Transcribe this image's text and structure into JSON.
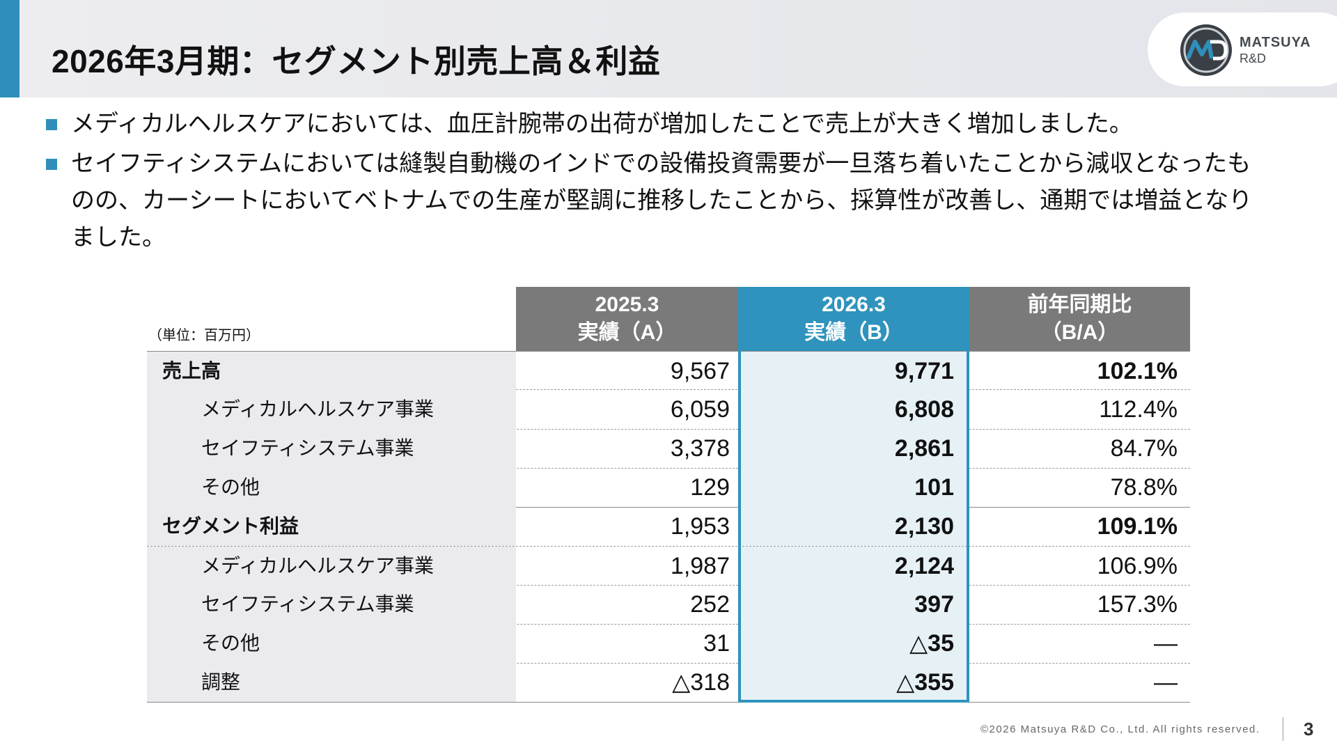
{
  "header": {
    "title": "2026年3月期：セグメント別売上高＆利益",
    "logo_name": "MATSUYA",
    "logo_sub": "R&D",
    "logo_icon": "mrd-circle-logo-icon",
    "accent_color": "#2f8fba"
  },
  "bullets": [
    "メディカルヘルスケアにおいては、血圧計腕帯の出荷が増加したことで売上が大きく増加しました。",
    "セイフティシステムにおいては縫製自動機のインドでの設備投資需要が一旦落ち着いたことから減収となったものの、カーシートにおいてベトナムでの生産が堅調に推移したことから、採算性が改善し、通期では増益となりました。"
  ],
  "table": {
    "unit": "（単位：百万円）",
    "headers": {
      "a": [
        "2025.3",
        "実績（A）"
      ],
      "b": [
        "2026.3",
        "実績（B）"
      ],
      "c": [
        "前年同期比",
        "（B/A）"
      ]
    },
    "rows": [
      {
        "label": "売上高",
        "a": "9,567",
        "b": "9,771",
        "c": "102.1%"
      },
      {
        "label": "メディカルヘルスケア事業",
        "a": "6,059",
        "b": "6,808",
        "c": "112.4%"
      },
      {
        "label": "セイフティシステム事業",
        "a": "3,378",
        "b": "2,861",
        "c": "84.7%"
      },
      {
        "label": "その他",
        "a": "129",
        "b": "101",
        "c": "78.8%"
      },
      {
        "label": "セグメント利益",
        "a": "1,953",
        "b": "2,130",
        "c": "109.1%"
      },
      {
        "label": "メディカルヘルスケア事業",
        "a": "1,987",
        "b": "2,124",
        "c": "106.9%"
      },
      {
        "label": "セイフティシステム事業",
        "a": "252",
        "b": "397",
        "c": "157.3%"
      },
      {
        "label": "その他",
        "a": "31",
        "b": "△35",
        "c": "―"
      },
      {
        "label": "調整",
        "a": "△318",
        "b": "△355",
        "c": "―"
      }
    ],
    "highlight_color": "#2f93bd"
  },
  "footer": {
    "copyright": "©2026 Matsuya R&D Co., Ltd. All rights reserved.",
    "page": "3"
  }
}
